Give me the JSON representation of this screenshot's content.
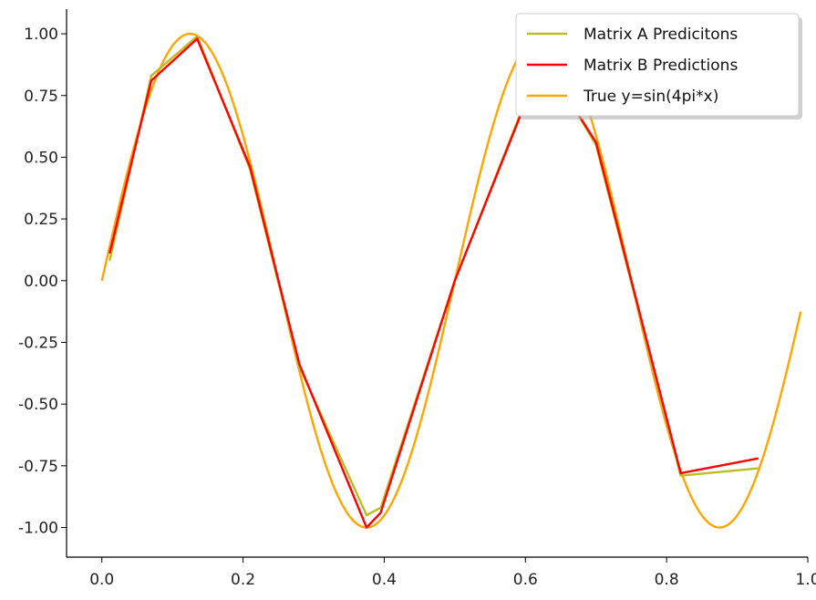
{
  "chart_data": {
    "type": "line",
    "title": "",
    "xlabel": "",
    "ylabel": "",
    "xlim": [
      -0.05,
      1.0
    ],
    "ylim": [
      -1.12,
      1.1
    ],
    "xticks": [
      0.0,
      0.2,
      0.4,
      0.6,
      0.8,
      1.0
    ],
    "xtick_labels": [
      "0.0",
      "0.2",
      "0.4",
      "0.6",
      "0.8",
      "1.0"
    ],
    "yticks": [
      1.0,
      0.75,
      0.5,
      0.25,
      0.0,
      -0.25,
      -0.5,
      -0.75,
      -1.0
    ],
    "ytick_labels": [
      "1.00",
      "0.75",
      "0.50",
      "0.25",
      "0.00",
      "-0.25",
      "-0.50",
      "-0.75",
      "-1.00"
    ],
    "grid": false,
    "legend_position": "top-right",
    "series": [
      {
        "name": "Matrix A Predicitons",
        "color": "#bcbd22",
        "x": [
          0.011,
          0.07,
          0.135,
          0.21,
          0.28,
          0.375,
          0.395,
          0.5,
          0.625,
          0.7,
          0.82,
          0.93
        ],
        "y": [
          0.08,
          0.83,
          0.99,
          0.45,
          -0.35,
          -0.95,
          -0.92,
          0.0,
          0.91,
          0.55,
          -0.79,
          -0.76
        ]
      },
      {
        "name": "Matrix B Predictions",
        "color": "#ff0000",
        "x": [
          0.011,
          0.07,
          0.135,
          0.21,
          0.28,
          0.375,
          0.395,
          0.5,
          0.625,
          0.7,
          0.82,
          0.93
        ],
        "y": [
          0.11,
          0.81,
          0.98,
          0.46,
          -0.34,
          -1.0,
          -0.94,
          0.0,
          0.9,
          0.56,
          -0.78,
          -0.72
        ]
      },
      {
        "name": "True y=sin(4pi*x)",
        "color": "#ffa500",
        "function": "sin(4*pi*x)",
        "x_range": [
          0.0,
          0.99
        ]
      }
    ]
  }
}
